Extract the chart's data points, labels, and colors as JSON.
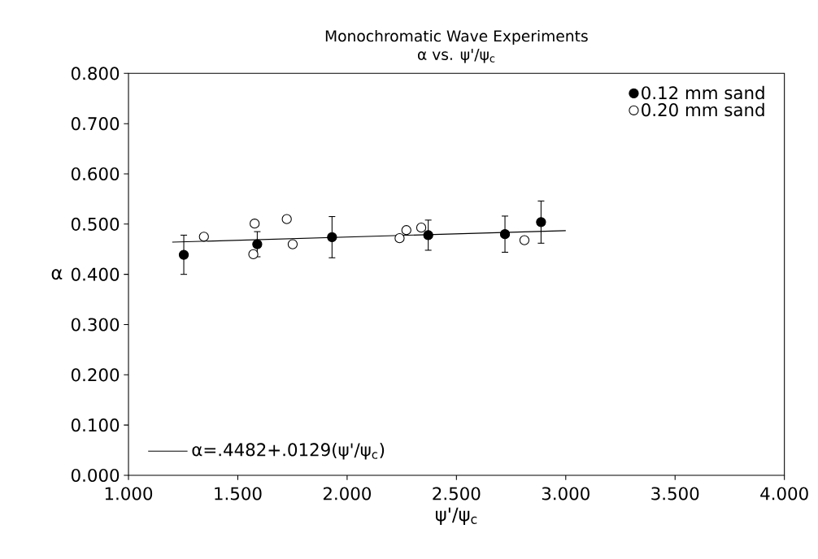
{
  "chart_data": {
    "type": "scatter",
    "title": "Monochromatic Wave Experiments",
    "subtitle": "α vs. ψ'/ψ$_{c}$",
    "xlabel": "ψ'/ψ$_{c}$",
    "ylabel": "α",
    "xlim": [
      1.0,
      4.0
    ],
    "ylim": [
      0.0,
      0.8
    ],
    "xticks": [
      {
        "value": 1.0,
        "label": "1.000"
      },
      {
        "value": 1.5,
        "label": "1.500"
      },
      {
        "value": 2.0,
        "label": "2.000"
      },
      {
        "value": 2.5,
        "label": "2.500"
      },
      {
        "value": 3.0,
        "label": "3.000"
      },
      {
        "value": 3.5,
        "label": "3.500"
      },
      {
        "value": 4.0,
        "label": "4.000"
      }
    ],
    "yticks": [
      {
        "value": 0.0,
        "label": "0.000"
      },
      {
        "value": 0.1,
        "label": "0.100"
      },
      {
        "value": 0.2,
        "label": "0.200"
      },
      {
        "value": 0.3,
        "label": "0.300"
      },
      {
        "value": 0.4,
        "label": "0.400"
      },
      {
        "value": 0.5,
        "label": "0.500"
      },
      {
        "value": 0.6,
        "label": "0.600"
      },
      {
        "value": 0.7,
        "label": "0.700"
      },
      {
        "value": 0.8,
        "label": "0.800"
      }
    ],
    "legend": "top right",
    "series": [
      {
        "name": "0.12 mm sand",
        "color": "#000000",
        "marker": "circle",
        "x": [
          1.253,
          1.589,
          1.931,
          2.371,
          2.722,
          2.887
        ],
        "values": [
          0.439,
          0.46,
          0.474,
          0.478,
          0.48,
          0.504
        ],
        "errors": [
          0.039,
          0.025,
          0.041,
          0.03,
          0.036,
          0.042
        ]
      },
      {
        "name": "0.20 mm sand",
        "color": "#000000",
        "marker": "circle",
        "x": [
          1.345,
          1.577,
          1.571,
          1.724,
          1.751,
          2.24,
          2.271,
          2.339,
          2.811
        ],
        "values": [
          0.475,
          0.501,
          0.44,
          0.51,
          0.46,
          0.472,
          0.488,
          0.493,
          0.468
        ]
      },
      {
        "name": "α=.4482+.0129(ψ'/ψ$_{c}$)",
        "type": "line",
        "marker": "none",
        "color": "#000000",
        "x": [
          1.2,
          3.0
        ],
        "values": [
          0.464,
          0.487
        ]
      }
    ]
  }
}
